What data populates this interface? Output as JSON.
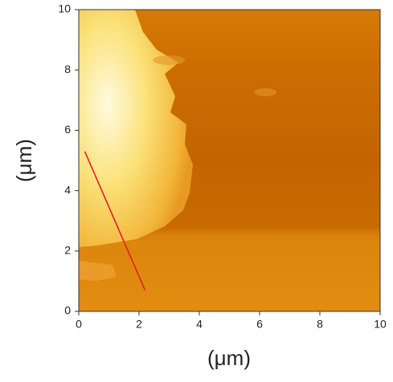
{
  "chart_data": {
    "type": "image",
    "xlabel": "(μm)",
    "ylabel": "(μm)",
    "xlim": [
      0,
      10
    ],
    "ylim": [
      0,
      10
    ],
    "xticks": [
      0,
      2,
      4,
      6,
      8,
      10
    ],
    "yticks": [
      0,
      2,
      4,
      6,
      8,
      10
    ],
    "profile_line": {
      "x": [
        0.2,
        2.2
      ],
      "y": [
        5.3,
        0.7
      ],
      "color": "#e0202a"
    }
  }
}
